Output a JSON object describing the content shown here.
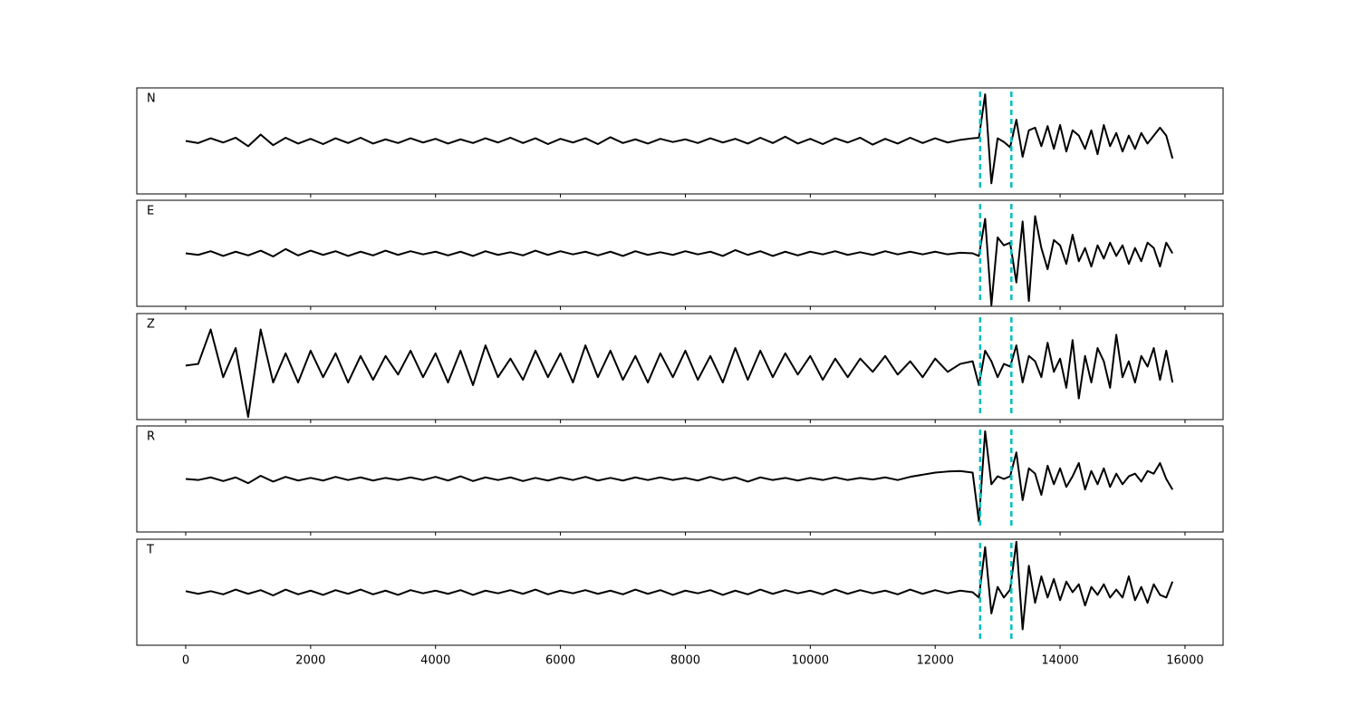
{
  "chart_data": [
    {
      "type": "line",
      "label": "N",
      "color": "#000000",
      "xlim": [
        -783,
        16610
      ],
      "ylim": [
        -1,
        1
      ],
      "vlines": [
        12720,
        13220
      ],
      "vline_color": "#00bfbf",
      "x": [
        0,
        200,
        400,
        600,
        800,
        1000,
        1200,
        1400,
        1600,
        1800,
        2000,
        2200,
        2400,
        2600,
        2800,
        3000,
        3200,
        3400,
        3600,
        3800,
        4000,
        4200,
        4400,
        4600,
        4800,
        5000,
        5200,
        5400,
        5600,
        5800,
        6000,
        6200,
        6400,
        6600,
        6800,
        7000,
        7200,
        7400,
        7600,
        7800,
        8000,
        8200,
        8400,
        8600,
        8800,
        9000,
        9200,
        9400,
        9600,
        9800,
        10000,
        10200,
        10400,
        10600,
        10800,
        11000,
        11200,
        11400,
        11600,
        11800,
        12000,
        12200,
        12400,
        12600,
        12700,
        12800,
        12900,
        13000,
        13100,
        13200,
        13300,
        13400,
        13500,
        13600,
        13700,
        13800,
        13900,
        14000,
        14100,
        14200,
        14300,
        14400,
        14500,
        14600,
        14700,
        14800,
        14900,
        15000,
        15100,
        15200,
        15300,
        15400,
        15500,
        15600,
        15700,
        15800
      ],
      "values": [
        0.0,
        -0.04,
        0.05,
        -0.03,
        0.06,
        -0.1,
        0.12,
        -0.08,
        0.06,
        -0.05,
        0.04,
        -0.06,
        0.05,
        -0.04,
        0.06,
        -0.05,
        0.03,
        -0.04,
        0.05,
        -0.03,
        0.04,
        -0.05,
        0.03,
        -0.04,
        0.05,
        -0.03,
        0.06,
        -0.04,
        0.05,
        -0.06,
        0.04,
        -0.03,
        0.05,
        -0.06,
        0.07,
        -0.04,
        0.03,
        -0.05,
        0.04,
        -0.02,
        0.03,
        -0.04,
        0.05,
        -0.03,
        0.04,
        -0.05,
        0.06,
        -0.04,
        0.08,
        -0.05,
        0.04,
        -0.06,
        0.05,
        -0.03,
        0.06,
        -0.07,
        0.04,
        -0.05,
        0.06,
        -0.04,
        0.05,
        -0.03,
        0.02,
        0.05,
        0.06,
        0.88,
        -0.8,
        0.05,
        -0.02,
        -0.12,
        0.4,
        -0.3,
        0.2,
        0.25,
        -0.1,
        0.28,
        -0.15,
        0.3,
        -0.2,
        0.2,
        0.1,
        -0.15,
        0.2,
        -0.25,
        0.3,
        -0.1,
        0.15,
        -0.2,
        0.1,
        -0.15,
        0.15,
        -0.05,
        0.1,
        0.25,
        0.1,
        -0.33
      ]
    },
    {
      "type": "line",
      "label": "E",
      "color": "#000000",
      "xlim": [
        -783,
        16610
      ],
      "ylim": [
        -1,
        1
      ],
      "vlines": [
        12720,
        13220
      ],
      "vline_color": "#00bfbf",
      "x": [
        0,
        200,
        400,
        600,
        800,
        1000,
        1200,
        1400,
        1600,
        1800,
        2000,
        2200,
        2400,
        2600,
        2800,
        3000,
        3200,
        3400,
        3600,
        3800,
        4000,
        4200,
        4400,
        4600,
        4800,
        5000,
        5200,
        5400,
        5600,
        5800,
        6000,
        6200,
        6400,
        6600,
        6800,
        7000,
        7200,
        7400,
        7600,
        7800,
        8000,
        8200,
        8400,
        8600,
        8800,
        9000,
        9200,
        9400,
        9600,
        9800,
        10000,
        10200,
        10400,
        10600,
        10800,
        11000,
        11200,
        11400,
        11600,
        11800,
        12000,
        12200,
        12400,
        12600,
        12700,
        12800,
        12900,
        13000,
        13100,
        13200,
        13300,
        13400,
        13500,
        13600,
        13700,
        13800,
        13900,
        14000,
        14100,
        14200,
        14300,
        14400,
        14500,
        14600,
        14700,
        14800,
        14900,
        15000,
        15100,
        15200,
        15300,
        15400,
        15500,
        15600,
        15700,
        15800
      ],
      "values": [
        0.0,
        -0.03,
        0.04,
        -0.05,
        0.03,
        -0.04,
        0.05,
        -0.06,
        0.08,
        -0.04,
        0.05,
        -0.03,
        0.04,
        -0.05,
        0.03,
        -0.04,
        0.05,
        -0.03,
        0.04,
        -0.02,
        0.03,
        -0.04,
        0.03,
        -0.05,
        0.04,
        -0.03,
        0.02,
        -0.04,
        0.05,
        -0.03,
        0.04,
        -0.02,
        0.03,
        -0.04,
        0.03,
        -0.05,
        0.04,
        -0.03,
        0.02,
        -0.03,
        0.04,
        -0.02,
        0.03,
        -0.05,
        0.06,
        -0.03,
        0.04,
        -0.05,
        0.03,
        -0.04,
        0.03,
        -0.02,
        0.04,
        -0.03,
        0.02,
        -0.03,
        0.04,
        -0.02,
        0.03,
        -0.02,
        0.03,
        -0.02,
        0.01,
        0.0,
        -0.05,
        0.65,
        -0.98,
        0.3,
        0.15,
        0.2,
        -0.55,
        0.6,
        -0.9,
        0.7,
        0.1,
        -0.3,
        0.25,
        0.15,
        -0.2,
        0.35,
        -0.15,
        0.1,
        -0.25,
        0.15,
        -0.1,
        0.2,
        -0.05,
        0.15,
        -0.2,
        0.1,
        -0.15,
        0.2,
        0.1,
        -0.25,
        0.2,
        0.0
      ]
    },
    {
      "type": "line",
      "label": "Z",
      "color": "#000000",
      "xlim": [
        -783,
        16610
      ],
      "ylim": [
        -1,
        1
      ],
      "vlines": [
        12720,
        13220
      ],
      "vline_color": "#00bfbf",
      "x": [
        0,
        200,
        400,
        600,
        800,
        1000,
        1200,
        1400,
        1600,
        1800,
        2000,
        2200,
        2400,
        2600,
        2800,
        3000,
        3200,
        3400,
        3600,
        3800,
        4000,
        4200,
        4400,
        4600,
        4800,
        5000,
        5200,
        5400,
        5600,
        5800,
        6000,
        6200,
        6400,
        6600,
        6800,
        7000,
        7200,
        7400,
        7600,
        7800,
        8000,
        8200,
        8400,
        8600,
        8800,
        9000,
        9200,
        9400,
        9600,
        9800,
        10000,
        10200,
        10400,
        10600,
        10800,
        11000,
        11200,
        11400,
        11600,
        11800,
        12000,
        12200,
        12400,
        12600,
        12700,
        12800,
        12900,
        13000,
        13100,
        13200,
        13300,
        13400,
        13500,
        13600,
        13700,
        13800,
        13900,
        14000,
        14100,
        14200,
        14300,
        14400,
        14500,
        14600,
        14700,
        14800,
        14900,
        15000,
        15100,
        15200,
        15300,
        15400,
        15500,
        15600,
        15700,
        15800
      ],
      "values": [
        0.02,
        0.05,
        0.7,
        -0.2,
        0.35,
        -0.95,
        0.7,
        -0.3,
        0.25,
        -0.3,
        0.3,
        -0.2,
        0.25,
        -0.3,
        0.2,
        -0.25,
        0.2,
        -0.15,
        0.3,
        -0.2,
        0.25,
        -0.3,
        0.3,
        -0.35,
        0.4,
        -0.2,
        0.15,
        -0.25,
        0.3,
        -0.2,
        0.25,
        -0.3,
        0.4,
        -0.2,
        0.3,
        -0.25,
        0.2,
        -0.3,
        0.25,
        -0.2,
        0.3,
        -0.25,
        0.2,
        -0.3,
        0.35,
        -0.25,
        0.3,
        -0.2,
        0.25,
        -0.15,
        0.2,
        -0.25,
        0.15,
        -0.2,
        0.15,
        -0.1,
        0.2,
        -0.15,
        0.1,
        -0.2,
        0.15,
        -0.1,
        0.05,
        0.1,
        -0.35,
        0.3,
        0.1,
        -0.2,
        0.05,
        0.0,
        0.4,
        -0.3,
        0.2,
        0.1,
        -0.2,
        0.45,
        -0.1,
        0.15,
        -0.4,
        0.5,
        -0.6,
        0.2,
        -0.3,
        0.35,
        0.1,
        -0.4,
        0.6,
        -0.2,
        0.1,
        -0.3,
        0.2,
        0.0,
        0.35,
        -0.25,
        0.3,
        -0.3
      ]
    },
    {
      "type": "line",
      "label": "R",
      "color": "#000000",
      "xlim": [
        -783,
        16610
      ],
      "ylim": [
        -1,
        1
      ],
      "vlines": [
        12720,
        13220
      ],
      "vline_color": "#00bfbf",
      "x": [
        0,
        200,
        400,
        600,
        800,
        1000,
        1200,
        1400,
        1600,
        1800,
        2000,
        2200,
        2400,
        2600,
        2800,
        3000,
        3200,
        3400,
        3600,
        3800,
        4000,
        4200,
        4400,
        4600,
        4800,
        5000,
        5200,
        5400,
        5600,
        5800,
        6000,
        6200,
        6400,
        6600,
        6800,
        7000,
        7200,
        7400,
        7600,
        7800,
        8000,
        8200,
        8400,
        8600,
        8800,
        9000,
        9200,
        9400,
        9600,
        9800,
        10000,
        10200,
        10400,
        10600,
        10800,
        11000,
        11200,
        11400,
        11600,
        11800,
        12000,
        12200,
        12400,
        12600,
        12700,
        12800,
        12900,
        13000,
        13100,
        13200,
        13300,
        13400,
        13500,
        13600,
        13700,
        13800,
        13900,
        14000,
        14100,
        14200,
        14300,
        14400,
        14500,
        14600,
        14700,
        14800,
        14900,
        15000,
        15100,
        15200,
        15300,
        15400,
        15500,
        15600,
        15700,
        15800
      ],
      "values": [
        0.0,
        -0.02,
        0.03,
        -0.04,
        0.03,
        -0.08,
        0.06,
        -0.05,
        0.04,
        -0.03,
        0.02,
        -0.03,
        0.04,
        -0.02,
        0.03,
        -0.03,
        0.02,
        -0.02,
        0.03,
        -0.02,
        0.04,
        -0.03,
        0.05,
        -0.04,
        0.03,
        -0.02,
        0.03,
        -0.04,
        0.02,
        -0.03,
        0.03,
        -0.02,
        0.04,
        -0.03,
        0.02,
        -0.03,
        0.03,
        -0.02,
        0.03,
        -0.02,
        0.02,
        -0.03,
        0.04,
        -0.02,
        0.03,
        -0.05,
        0.03,
        -0.02,
        0.02,
        -0.03,
        0.02,
        -0.02,
        0.03,
        -0.02,
        0.02,
        -0.01,
        0.03,
        -0.02,
        0.04,
        0.08,
        0.12,
        0.14,
        0.15,
        0.12,
        -0.8,
        0.9,
        -0.1,
        0.05,
        0.0,
        0.05,
        0.5,
        -0.4,
        0.2,
        0.1,
        -0.3,
        0.25,
        -0.1,
        0.2,
        -0.15,
        0.05,
        0.3,
        -0.2,
        0.15,
        -0.1,
        0.2,
        -0.15,
        0.1,
        -0.1,
        0.05,
        0.1,
        -0.05,
        0.15,
        0.1,
        0.3,
        0.0,
        -0.2
      ]
    },
    {
      "type": "line",
      "label": "T",
      "color": "#000000",
      "xlim": [
        -783,
        16610
      ],
      "ylim": [
        -1,
        1
      ],
      "vlines": [
        12720,
        13220
      ],
      "vline_color": "#00bfbf",
      "xticks": [
        0,
        2000,
        4000,
        6000,
        8000,
        10000,
        12000,
        14000,
        16000
      ],
      "x": [
        0,
        200,
        400,
        600,
        800,
        1000,
        1200,
        1400,
        1600,
        1800,
        2000,
        2200,
        2400,
        2600,
        2800,
        3000,
        3200,
        3400,
        3600,
        3800,
        4000,
        4200,
        4400,
        4600,
        4800,
        5000,
        5200,
        5400,
        5600,
        5800,
        6000,
        6200,
        6400,
        6600,
        6800,
        7000,
        7200,
        7400,
        7600,
        7800,
        8000,
        8200,
        8400,
        8600,
        8800,
        9000,
        9200,
        9400,
        9600,
        9800,
        10000,
        10200,
        10400,
        10600,
        10800,
        11000,
        11200,
        11400,
        11600,
        11800,
        12000,
        12200,
        12400,
        12600,
        12700,
        12800,
        12900,
        13000,
        13100,
        13200,
        13300,
        13400,
        13500,
        13600,
        13700,
        13800,
        13900,
        14000,
        14100,
        14200,
        14300,
        14400,
        14500,
        14600,
        14700,
        14800,
        14900,
        15000,
        15100,
        15200,
        15300,
        15400,
        15500,
        15600,
        15700,
        15800
      ],
      "values": [
        0.02,
        -0.03,
        0.02,
        -0.04,
        0.05,
        -0.03,
        0.04,
        -0.06,
        0.05,
        -0.04,
        0.03,
        -0.05,
        0.04,
        -0.03,
        0.05,
        -0.04,
        0.03,
        -0.05,
        0.04,
        -0.02,
        0.03,
        -0.03,
        0.04,
        -0.05,
        0.03,
        -0.02,
        0.04,
        -0.03,
        0.05,
        -0.04,
        0.03,
        -0.02,
        0.04,
        -0.03,
        0.03,
        -0.04,
        0.05,
        -0.03,
        0.04,
        -0.05,
        0.03,
        -0.02,
        0.04,
        -0.05,
        0.03,
        -0.04,
        0.05,
        -0.03,
        0.04,
        -0.02,
        0.03,
        -0.04,
        0.05,
        -0.03,
        0.04,
        -0.02,
        0.03,
        -0.04,
        0.05,
        -0.03,
        0.04,
        -0.02,
        0.03,
        0.0,
        -0.1,
        0.85,
        -0.4,
        0.1,
        -0.1,
        0.05,
        0.95,
        -0.7,
        0.5,
        -0.2,
        0.3,
        -0.1,
        0.25,
        -0.15,
        0.2,
        0.0,
        0.15,
        -0.25,
        0.1,
        -0.05,
        0.15,
        -0.1,
        0.05,
        -0.1,
        0.3,
        -0.15,
        0.1,
        -0.2,
        0.15,
        -0.05,
        -0.1,
        0.2
      ]
    }
  ]
}
